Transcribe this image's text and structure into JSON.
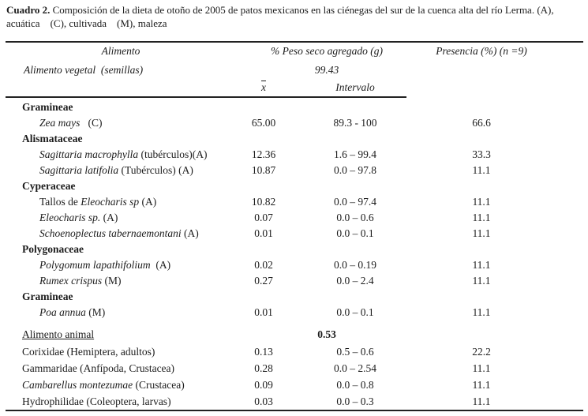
{
  "caption": {
    "label": "Cuadro 2.",
    "line1_rest": " Composición de la dieta de otoño de 2005 de patos mexicanos en las ciénegas del sur de la cuenca alta del río Lerma. (A),",
    "line2": "acuática    (C), cultivada    (M), maleza"
  },
  "header": {
    "food": "Alimento",
    "dry_weight": "% Peso seco agregado (g)",
    "presence": "Presencia (%) (n =9)",
    "veg_group_label": "Alimento vegetal  (semillas)",
    "veg_group_total": "99.43",
    "mean_symbol": "x",
    "interval": "Intervalo"
  },
  "rows": [
    {
      "kind": "family",
      "name": [
        {
          "text": "Gramineae"
        }
      ]
    },
    {
      "kind": "species",
      "name": [
        {
          "text": "Zea mays",
          "italic": true
        },
        {
          "text": "   (C)"
        }
      ],
      "mean": "65.00",
      "interval": "89.3 - 100",
      "presence": "66.6"
    },
    {
      "kind": "family",
      "name": [
        {
          "text": "Alismataceae"
        }
      ]
    },
    {
      "kind": "species",
      "name": [
        {
          "text": "Sagittaria macrophylla",
          "italic": true
        },
        {
          "text": " (tubérculos)(A)"
        }
      ],
      "mean": "12.36",
      "interval": "1.6 – 99.4",
      "presence": "33.3"
    },
    {
      "kind": "species",
      "name": [
        {
          "text": "Sagittaria latifolia",
          "italic": true
        },
        {
          "text": " (Tubérculos) (A)"
        }
      ],
      "mean": "10.87",
      "interval": "0.0 – 97.8",
      "presence": "11.1"
    },
    {
      "kind": "family",
      "name": [
        {
          "text": "Cyperaceae"
        }
      ]
    },
    {
      "kind": "species",
      "name": [
        {
          "text": "Tallos de "
        },
        {
          "text": "Eleocharis sp",
          "italic": true
        },
        {
          "text": " (A)"
        }
      ],
      "mean": "10.82",
      "interval": "0.0 – 97.4",
      "presence": "11.1"
    },
    {
      "kind": "species",
      "name": [
        {
          "text": "Eleocharis sp.",
          "italic": true
        },
        {
          "text": " (A)"
        }
      ],
      "mean": "0.07",
      "interval": "0.0 – 0.6",
      "presence": "11.1"
    },
    {
      "kind": "species",
      "name": [
        {
          "text": "Schoenoplectus tabernaemontani",
          "italic": true
        },
        {
          "text": " (A)"
        }
      ],
      "mean": "0.01",
      "interval": "0.0 – 0.1",
      "presence": "11.1"
    },
    {
      "kind": "family",
      "name": [
        {
          "text": "Polygonaceae"
        }
      ]
    },
    {
      "kind": "species",
      "name": [
        {
          "text": "Polygomum lapathifolium",
          "italic": true
        },
        {
          "text": "  (A)"
        }
      ],
      "mean": "0.02",
      "interval": "0.0 – 0.19",
      "presence": "11.1"
    },
    {
      "kind": "species",
      "name": [
        {
          "text": "Rumex crispus",
          "italic": true
        },
        {
          "text": " (M)"
        }
      ],
      "mean": "0.27",
      "interval": "0.0 – 2.4",
      "presence": "11.1"
    },
    {
      "kind": "family",
      "name": [
        {
          "text": "Gramineae"
        }
      ]
    },
    {
      "kind": "species",
      "name": [
        {
          "text": "Poa annua",
          "italic": true
        },
        {
          "text": " (M)"
        }
      ],
      "mean": "0.01",
      "interval": "0.0 – 0.1",
      "presence": "11.1"
    },
    {
      "kind": "spacer"
    },
    {
      "kind": "group-header",
      "name": [
        {
          "text": "Alimento animal"
        }
      ],
      "group_total": "0.53"
    },
    {
      "kind": "animal",
      "name": [
        {
          "text": "Corixidae (Hemiptera, adultos)"
        }
      ],
      "mean": "0.13",
      "interval": "0.5 – 0.6",
      "presence": "22.2"
    },
    {
      "kind": "animal",
      "name": [
        {
          "text": "Gammaridae (Anfípoda, Crustacea)"
        }
      ],
      "mean": "0.28",
      "interval": "0.0 – 2.54",
      "presence": "11.1"
    },
    {
      "kind": "animal",
      "name": [
        {
          "text": "Cambarellus montezumae",
          "italic": true
        },
        {
          "text": " (Crustacea)"
        }
      ],
      "mean": "0.09",
      "interval": "0.0 – 0.8",
      "presence": "11.1"
    },
    {
      "kind": "animal",
      "name": [
        {
          "text": "Hydrophilidae (Coleoptera, larvas)"
        }
      ],
      "mean": "0.03",
      "interval": "0.0 – 0.3",
      "presence": "11.1"
    }
  ]
}
